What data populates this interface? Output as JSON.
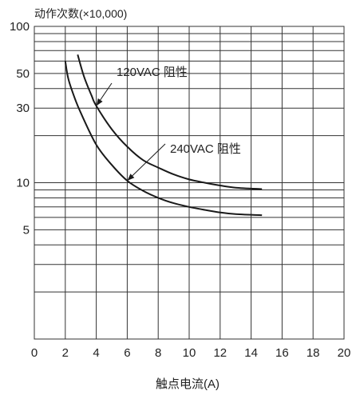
{
  "chart_data": {
    "type": "line",
    "title": "",
    "ylabel": "动作次数(×10,000)",
    "xlabel": "触点电流(A)",
    "xlim": [
      0,
      20
    ],
    "ylim": [
      1,
      100
    ],
    "yscale": "log",
    "grid": true,
    "x_ticks": [
      "0",
      "2",
      "4",
      "6",
      "8",
      "10",
      "12",
      "14",
      "16",
      "18",
      "20"
    ],
    "y_ticks": [
      {
        "value": 100,
        "label": "100"
      },
      {
        "value": 50,
        "label": "50"
      },
      {
        "value": 30,
        "label": "30"
      },
      {
        "value": 10,
        "label": "10"
      },
      {
        "value": 5,
        "label": "5"
      }
    ],
    "series": [
      {
        "name": "120VAC  阻性",
        "x": [
          2.8,
          3.2,
          3.7,
          4.0,
          5.0,
          6.0,
          7.0,
          8.0,
          9.0,
          10.0,
          11.0,
          12.0,
          13.0,
          14.7
        ],
        "y": [
          66,
          48,
          36,
          31,
          22,
          17,
          14,
          12.5,
          11.3,
          10.5,
          10.0,
          9.6,
          9.3,
          9.1
        ]
      },
      {
        "name": "240VAC  阻性",
        "x": [
          2.0,
          2.2,
          2.6,
          3.0,
          4.0,
          5.0,
          6.0,
          7.0,
          8.0,
          9.0,
          10.0,
          11.0,
          12.0,
          13.0,
          14.7
        ],
        "y": [
          60,
          46,
          35,
          28,
          17.5,
          13,
          10.3,
          8.9,
          8.0,
          7.4,
          7.0,
          6.7,
          6.45,
          6.3,
          6.2
        ]
      }
    ],
    "annotations": [
      {
        "text": "120VAC  阻性",
        "series": 0,
        "point_x": 4.0
      },
      {
        "text": "240VAC  阻性",
        "series": 1,
        "point_x": 6.0
      }
    ]
  }
}
